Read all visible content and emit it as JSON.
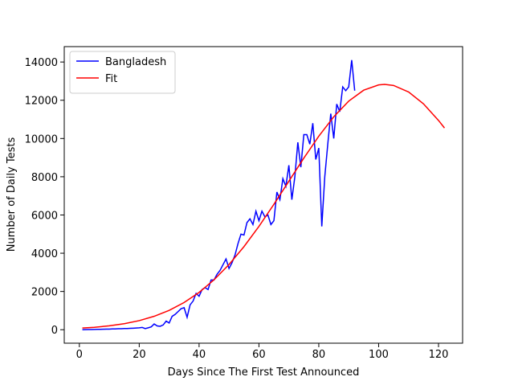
{
  "chart_data": {
    "type": "line",
    "xlabel": "Days Since The First Test Announced",
    "ylabel": "Number of Daily Tests",
    "xlim": [
      -5.05,
      128.05
    ],
    "ylim": [
      -705,
      14805
    ],
    "xticks": [
      0,
      20,
      40,
      60,
      80,
      100,
      120
    ],
    "yticks": [
      0,
      2000,
      4000,
      6000,
      8000,
      10000,
      12000,
      14000
    ],
    "legend": "upper left",
    "series": [
      {
        "name": "Bangladesh",
        "color": "#0000ff",
        "x": [
          1,
          2,
          3,
          4,
          5,
          6,
          7,
          8,
          9,
          10,
          11,
          12,
          13,
          14,
          15,
          16,
          17,
          18,
          19,
          20,
          21,
          22,
          23,
          24,
          25,
          26,
          27,
          28,
          29,
          30,
          31,
          32,
          33,
          34,
          35,
          36,
          37,
          38,
          39,
          40,
          41,
          42,
          43,
          44,
          45,
          46,
          47,
          48,
          49,
          50,
          51,
          52,
          53,
          54,
          55,
          56,
          57,
          58,
          59,
          60,
          61,
          62,
          63,
          64,
          65,
          66,
          67,
          68,
          69,
          70,
          71,
          72,
          73,
          74,
          75,
          76,
          77,
          78,
          79,
          80,
          81,
          82,
          83,
          84,
          85,
          86,
          87,
          88,
          89,
          90,
          91,
          92
        ],
        "values": [
          0,
          5,
          10,
          10,
          15,
          20,
          20,
          25,
          30,
          30,
          40,
          40,
          50,
          50,
          60,
          60,
          70,
          80,
          90,
          100,
          120,
          60,
          100,
          150,
          300,
          200,
          180,
          250,
          450,
          350,
          700,
          800,
          950,
          1100,
          1150,
          650,
          1300,
          1500,
          1900,
          1750,
          2100,
          2200,
          2100,
          2600,
          2600,
          2900,
          3100,
          3400,
          3700,
          3200,
          3500,
          3900,
          4500,
          5000,
          4950,
          5600,
          5800,
          5500,
          6200,
          5700,
          6200,
          5900,
          6000,
          5500,
          5700,
          7200,
          6800,
          7900,
          7500,
          8600,
          6800,
          8000,
          9800,
          8500,
          10200,
          10200,
          9700,
          10800,
          8900,
          9500,
          5400,
          8000,
          9700,
          11300,
          10000,
          11800,
          11400,
          12700,
          12500,
          12700,
          14100,
          12500
        ]
      },
      {
        "name": "Fit",
        "color": "#ff0000",
        "x": [
          1,
          5,
          10,
          15,
          20,
          25,
          30,
          35,
          40,
          45,
          50,
          55,
          60,
          65,
          70,
          75,
          80,
          85,
          90,
          95,
          100,
          102,
          105,
          110,
          115,
          120,
          122
        ],
        "values": [
          86,
          127,
          202,
          314,
          475,
          702,
          1011,
          1422,
          1949,
          2610,
          3409,
          4344,
          5404,
          6557,
          7766,
          8975,
          10120,
          11135,
          11955,
          12526,
          12804,
          12830,
          12774,
          12434,
          11810,
          10946,
          10550
        ]
      }
    ]
  }
}
